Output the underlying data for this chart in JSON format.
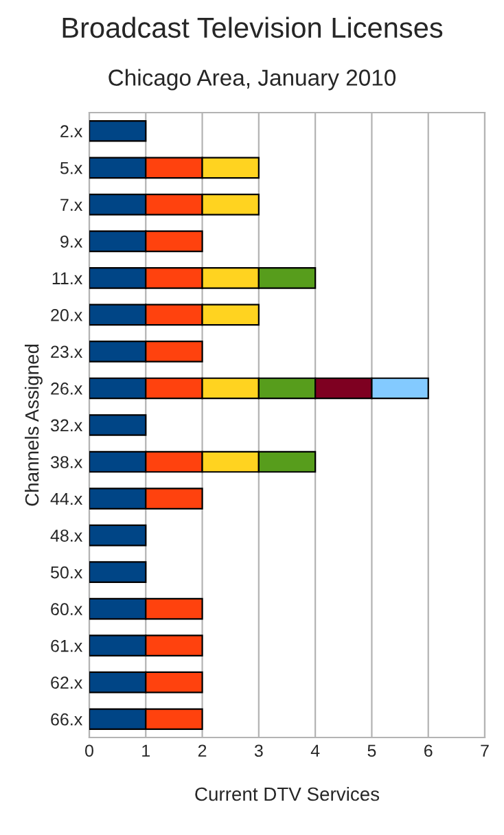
{
  "chart_data": {
    "type": "bar",
    "title": "Broadcast Television Licenses",
    "subtitle": "Chicago Area, January 2010",
    "xlabel": "Current DTV Services",
    "ylabel": "Channels Assigned",
    "categories": [
      "2.x",
      "5.x",
      "7.x",
      "9.x",
      "11.x",
      "20.x",
      "23.x",
      "26.x",
      "32.x",
      "38.x",
      "44.x",
      "48.x",
      "50.x",
      "60.x",
      "61.x",
      "62.x",
      "66.x"
    ],
    "orientation": "horizontal",
    "stacked": true,
    "series": [
      {
        "color": "#004586",
        "values": [
          1,
          1,
          1,
          1,
          1,
          1,
          1,
          1,
          1,
          1,
          1,
          1,
          1,
          1,
          1,
          1,
          1
        ]
      },
      {
        "color": "#ff420e",
        "values": [
          null,
          1,
          1,
          1,
          1,
          1,
          1,
          1,
          null,
          1,
          1,
          null,
          null,
          1,
          1,
          1,
          1
        ]
      },
      {
        "color": "#ffd320",
        "values": [
          null,
          1,
          1,
          null,
          1,
          1,
          null,
          1,
          null,
          1,
          null,
          null,
          null,
          null,
          null,
          null,
          null
        ]
      },
      {
        "color": "#579d1c",
        "values": [
          null,
          null,
          null,
          null,
          1,
          null,
          null,
          1,
          null,
          1,
          null,
          null,
          null,
          null,
          null,
          null,
          null
        ]
      },
      {
        "color": "#7e0021",
        "values": [
          null,
          null,
          null,
          null,
          null,
          null,
          null,
          1,
          null,
          null,
          null,
          null,
          null,
          null,
          null,
          null,
          null
        ]
      },
      {
        "color": "#83caff",
        "values": [
          null,
          null,
          null,
          null,
          null,
          null,
          null,
          1,
          null,
          null,
          null,
          null,
          null,
          null,
          null,
          null,
          null
        ]
      }
    ],
    "xlim": [
      0,
      7
    ],
    "xticks": [
      0,
      1,
      2,
      3,
      4,
      5,
      6,
      7
    ],
    "grid": "x",
    "legend": false
  }
}
